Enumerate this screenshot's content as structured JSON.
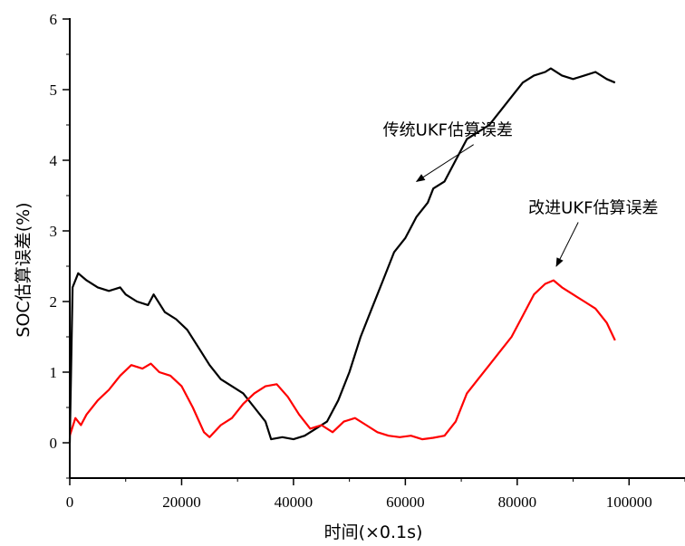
{
  "chart_data": {
    "type": "line",
    "title": "",
    "xlabel": "时间(×0.1s)",
    "ylabel": "SOC估算误差(%)",
    "xlim": [
      0,
      110000
    ],
    "ylim": [
      -0.5,
      6
    ],
    "x_ticks": [
      0,
      20000,
      40000,
      60000,
      80000,
      100000
    ],
    "y_ticks": [
      0,
      1,
      2,
      3,
      4,
      5,
      6
    ],
    "grid": false,
    "legend": "none",
    "series": [
      {
        "color": "#000000",
        "points": [
          [
            0,
            0.0
          ],
          [
            500,
            2.2
          ],
          [
            1500,
            2.4
          ],
          [
            3000,
            2.3
          ],
          [
            5000,
            2.2
          ],
          [
            7000,
            2.15
          ],
          [
            9000,
            2.2
          ],
          [
            10000,
            2.1
          ],
          [
            12000,
            2.0
          ],
          [
            14000,
            1.95
          ],
          [
            15000,
            2.1
          ],
          [
            17000,
            1.85
          ],
          [
            19000,
            1.75
          ],
          [
            21000,
            1.6
          ],
          [
            23000,
            1.35
          ],
          [
            25000,
            1.1
          ],
          [
            27000,
            0.9
          ],
          [
            29000,
            0.8
          ],
          [
            31000,
            0.7
          ],
          [
            33000,
            0.5
          ],
          [
            35000,
            0.3
          ],
          [
            36000,
            0.05
          ],
          [
            38000,
            0.08
          ],
          [
            40000,
            0.05
          ],
          [
            42000,
            0.1
          ],
          [
            44000,
            0.2
          ],
          [
            46000,
            0.3
          ],
          [
            48000,
            0.6
          ],
          [
            50000,
            1.0
          ],
          [
            52000,
            1.5
          ],
          [
            54000,
            1.9
          ],
          [
            56000,
            2.3
          ],
          [
            58000,
            2.7
          ],
          [
            60000,
            2.9
          ],
          [
            62000,
            3.2
          ],
          [
            64000,
            3.4
          ],
          [
            65000,
            3.6
          ],
          [
            67000,
            3.7
          ],
          [
            69000,
            4.0
          ],
          [
            71000,
            4.3
          ],
          [
            73000,
            4.4
          ],
          [
            75000,
            4.5
          ],
          [
            77000,
            4.7
          ],
          [
            79000,
            4.9
          ],
          [
            81000,
            5.1
          ],
          [
            83000,
            5.2
          ],
          [
            85000,
            5.25
          ],
          [
            86000,
            5.3
          ],
          [
            88000,
            5.2
          ],
          [
            90000,
            5.15
          ],
          [
            92000,
            5.2
          ],
          [
            94000,
            5.25
          ],
          [
            96000,
            5.15
          ],
          [
            97500,
            5.1
          ]
        ]
      },
      {
        "color": "#ff0000",
        "points": [
          [
            0,
            0.1
          ],
          [
            1000,
            0.35
          ],
          [
            2000,
            0.25
          ],
          [
            3000,
            0.4
          ],
          [
            5000,
            0.6
          ],
          [
            7000,
            0.75
          ],
          [
            9000,
            0.95
          ],
          [
            11000,
            1.1
          ],
          [
            13000,
            1.05
          ],
          [
            14500,
            1.12
          ],
          [
            16000,
            1.0
          ],
          [
            18000,
            0.95
          ],
          [
            20000,
            0.8
          ],
          [
            22000,
            0.5
          ],
          [
            24000,
            0.15
          ],
          [
            25000,
            0.08
          ],
          [
            27000,
            0.25
          ],
          [
            29000,
            0.35
          ],
          [
            31000,
            0.55
          ],
          [
            33000,
            0.7
          ],
          [
            35000,
            0.8
          ],
          [
            37000,
            0.83
          ],
          [
            39000,
            0.65
          ],
          [
            41000,
            0.4
          ],
          [
            43000,
            0.2
          ],
          [
            45000,
            0.25
          ],
          [
            47000,
            0.15
          ],
          [
            49000,
            0.3
          ],
          [
            51000,
            0.35
          ],
          [
            53000,
            0.25
          ],
          [
            55000,
            0.15
          ],
          [
            57000,
            0.1
          ],
          [
            59000,
            0.08
          ],
          [
            61000,
            0.1
          ],
          [
            63000,
            0.05
          ],
          [
            65000,
            0.07
          ],
          [
            67000,
            0.1
          ],
          [
            69000,
            0.3
          ],
          [
            71000,
            0.7
          ],
          [
            73000,
            0.9
          ],
          [
            75000,
            1.1
          ],
          [
            77000,
            1.3
          ],
          [
            79000,
            1.5
          ],
          [
            81000,
            1.8
          ],
          [
            83000,
            2.1
          ],
          [
            85000,
            2.25
          ],
          [
            86500,
            2.3
          ],
          [
            88000,
            2.2
          ],
          [
            90000,
            2.1
          ],
          [
            92000,
            2.0
          ],
          [
            94000,
            1.9
          ],
          [
            96000,
            1.7
          ],
          [
            97500,
            1.45
          ]
        ]
      }
    ],
    "annotations": [
      {
        "text": "传统UKF估算误差",
        "x": 56000,
        "y": 4.35,
        "arrow_to": [
          62000,
          3.7
        ]
      },
      {
        "text": "改进UKF估算误差",
        "x": 82000,
        "y": 3.25,
        "arrow_to": [
          87000,
          2.5
        ]
      }
    ]
  }
}
